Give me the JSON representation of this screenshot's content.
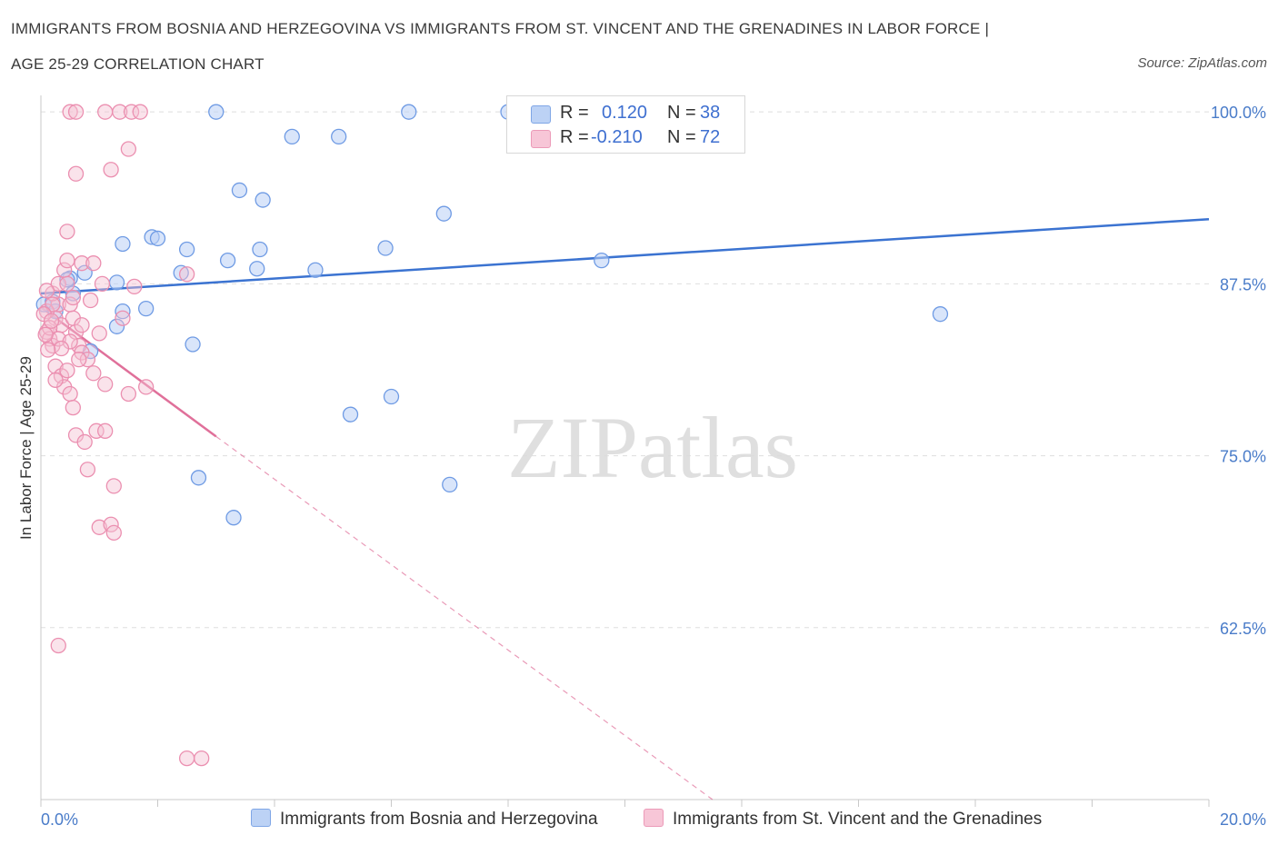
{
  "title_line1": "IMMIGRANTS FROM BOSNIA AND HERZEGOVINA VS IMMIGRANTS FROM ST. VINCENT AND THE GRENADINES IN LABOR FORCE |",
  "title_line2": "AGE 25-29 CORRELATION CHART",
  "source": "Source: ZipAtlas.com",
  "watermark": "ZIPatlas",
  "colors": {
    "blue": "#5b8fe0",
    "blue_fill": "#b9d0f5",
    "pink": "#e87aa0",
    "pink_fill": "#f5c0d3",
    "axis_text": "#4a7cc9"
  },
  "legend": {
    "r_label": "R =",
    "n_label": "N =",
    "blue": {
      "r": "0.120",
      "n": "38"
    },
    "pink": {
      "r": "-0.210",
      "n": "72"
    }
  },
  "bottom_legend": {
    "blue": "Immigrants from Bosnia and Herzegovina",
    "pink": "Immigrants from St. Vincent and the Grenadines"
  },
  "chart_data": {
    "type": "scatter",
    "title": "IMMIGRANTS FROM BOSNIA AND HERZEGOVINA VS IMMIGRANTS FROM ST. VINCENT AND THE GRENADINES IN LABOR FORCE | AGE 25-29 CORRELATION CHART",
    "xlabel": "",
    "ylabel": "In Labor Force | Age 25-29",
    "xlim": [
      0,
      20
    ],
    "ylim": [
      50,
      101.2
    ],
    "x_tick_labels": [
      "0.0%",
      "20.0%"
    ],
    "y_ticks": [
      62.5,
      75.0,
      87.5,
      100.0
    ],
    "y_tick_labels": [
      "62.5%",
      "75.0%",
      "87.5%",
      "100.0%"
    ],
    "series": [
      {
        "name": "Immigrants from Bosnia and Herzegovina",
        "color": "blue",
        "trend": {
          "x": [
            0,
            20
          ],
          "y": [
            86.8,
            92.2
          ],
          "dashed_to": null
        },
        "points": [
          [
            0.05,
            86.0
          ],
          [
            0.2,
            86.2
          ],
          [
            0.25,
            85.5
          ],
          [
            0.5,
            87.9
          ],
          [
            0.55,
            86.8
          ],
          [
            0.75,
            88.3
          ],
          [
            0.85,
            82.6
          ],
          [
            1.3,
            87.6
          ],
          [
            1.4,
            85.5
          ],
          [
            1.8,
            85.7
          ],
          [
            2.4,
            88.3
          ],
          [
            2.6,
            83.1
          ],
          [
            0.45,
            87.8
          ],
          [
            1.3,
            84.4
          ],
          [
            3.0,
            100.0
          ],
          [
            3.4,
            94.3
          ],
          [
            3.8,
            93.6
          ],
          [
            4.3,
            98.2
          ],
          [
            5.1,
            98.2
          ],
          [
            6.3,
            100.0
          ],
          [
            6.9,
            92.6
          ],
          [
            1.4,
            90.4
          ],
          [
            1.9,
            90.9
          ],
          [
            2.0,
            90.8
          ],
          [
            2.5,
            90.0
          ],
          [
            3.2,
            89.2
          ],
          [
            3.7,
            88.6
          ],
          [
            3.75,
            90.0
          ],
          [
            4.7,
            88.5
          ],
          [
            5.9,
            90.1
          ],
          [
            9.6,
            89.2
          ],
          [
            15.4,
            85.3
          ],
          [
            2.7,
            73.4
          ],
          [
            3.3,
            70.5
          ],
          [
            5.3,
            78.0
          ],
          [
            6.0,
            79.3
          ],
          [
            7.0,
            72.9
          ],
          [
            8.0,
            100.0
          ]
        ]
      },
      {
        "name": "Immigrants from St. Vincent and the Grenadines",
        "color": "pink",
        "trend": {
          "x": [
            0,
            3.0
          ],
          "y": [
            85.8,
            76.4
          ],
          "dashed_to": [
            11.5,
            50.0
          ]
        },
        "points": [
          [
            0.1,
            84.0
          ],
          [
            0.15,
            83.5
          ],
          [
            0.2,
            83.0
          ],
          [
            0.25,
            85.0
          ],
          [
            0.3,
            86.0
          ],
          [
            0.35,
            84.5
          ],
          [
            0.1,
            85.5
          ],
          [
            0.2,
            86.8
          ],
          [
            0.3,
            87.5
          ],
          [
            0.4,
            88.5
          ],
          [
            0.5,
            86.0
          ],
          [
            0.55,
            85.0
          ],
          [
            0.6,
            84.0
          ],
          [
            0.65,
            83.0
          ],
          [
            0.7,
            82.5
          ],
          [
            0.8,
            82.0
          ],
          [
            0.9,
            81.0
          ],
          [
            0.25,
            81.5
          ],
          [
            0.35,
            80.8
          ],
          [
            0.4,
            80.0
          ],
          [
            0.5,
            79.5
          ],
          [
            0.6,
            76.5
          ],
          [
            0.75,
            76.0
          ],
          [
            0.95,
            76.8
          ],
          [
            1.1,
            76.8
          ],
          [
            0.8,
            74.0
          ],
          [
            1.25,
            72.8
          ],
          [
            1.0,
            69.8
          ],
          [
            1.2,
            70.0
          ],
          [
            1.25,
            69.4
          ],
          [
            0.3,
            61.2
          ],
          [
            2.5,
            53.0
          ],
          [
            2.75,
            53.0
          ],
          [
            0.45,
            91.3
          ],
          [
            0.6,
            95.5
          ],
          [
            1.2,
            95.8
          ],
          [
            1.5,
            97.3
          ],
          [
            0.45,
            89.2
          ],
          [
            0.7,
            89.0
          ],
          [
            0.9,
            89.0
          ],
          [
            1.05,
            87.5
          ],
          [
            1.6,
            87.3
          ],
          [
            2.5,
            88.2
          ],
          [
            0.85,
            86.3
          ],
          [
            0.55,
            86.5
          ],
          [
            0.45,
            87.5
          ],
          [
            0.2,
            86.0
          ],
          [
            0.15,
            84.3
          ],
          [
            0.3,
            83.5
          ],
          [
            0.5,
            83.3
          ],
          [
            0.65,
            82.0
          ],
          [
            1.1,
            80.2
          ],
          [
            1.5,
            79.5
          ],
          [
            1.8,
            80.0
          ],
          [
            1.4,
            85.0
          ],
          [
            1.0,
            83.9
          ],
          [
            0.7,
            84.5
          ],
          [
            0.35,
            82.8
          ],
          [
            0.45,
            81.2
          ],
          [
            0.25,
            80.5
          ],
          [
            0.55,
            78.5
          ],
          [
            0.5,
            100.0
          ],
          [
            0.6,
            100.0
          ],
          [
            1.1,
            100.0
          ],
          [
            1.35,
            100.0
          ],
          [
            1.55,
            100.0
          ],
          [
            1.7,
            100.0
          ],
          [
            0.1,
            87.0
          ],
          [
            0.05,
            85.3
          ],
          [
            0.08,
            83.8
          ],
          [
            0.12,
            82.7
          ],
          [
            0.18,
            84.8
          ]
        ]
      }
    ]
  }
}
